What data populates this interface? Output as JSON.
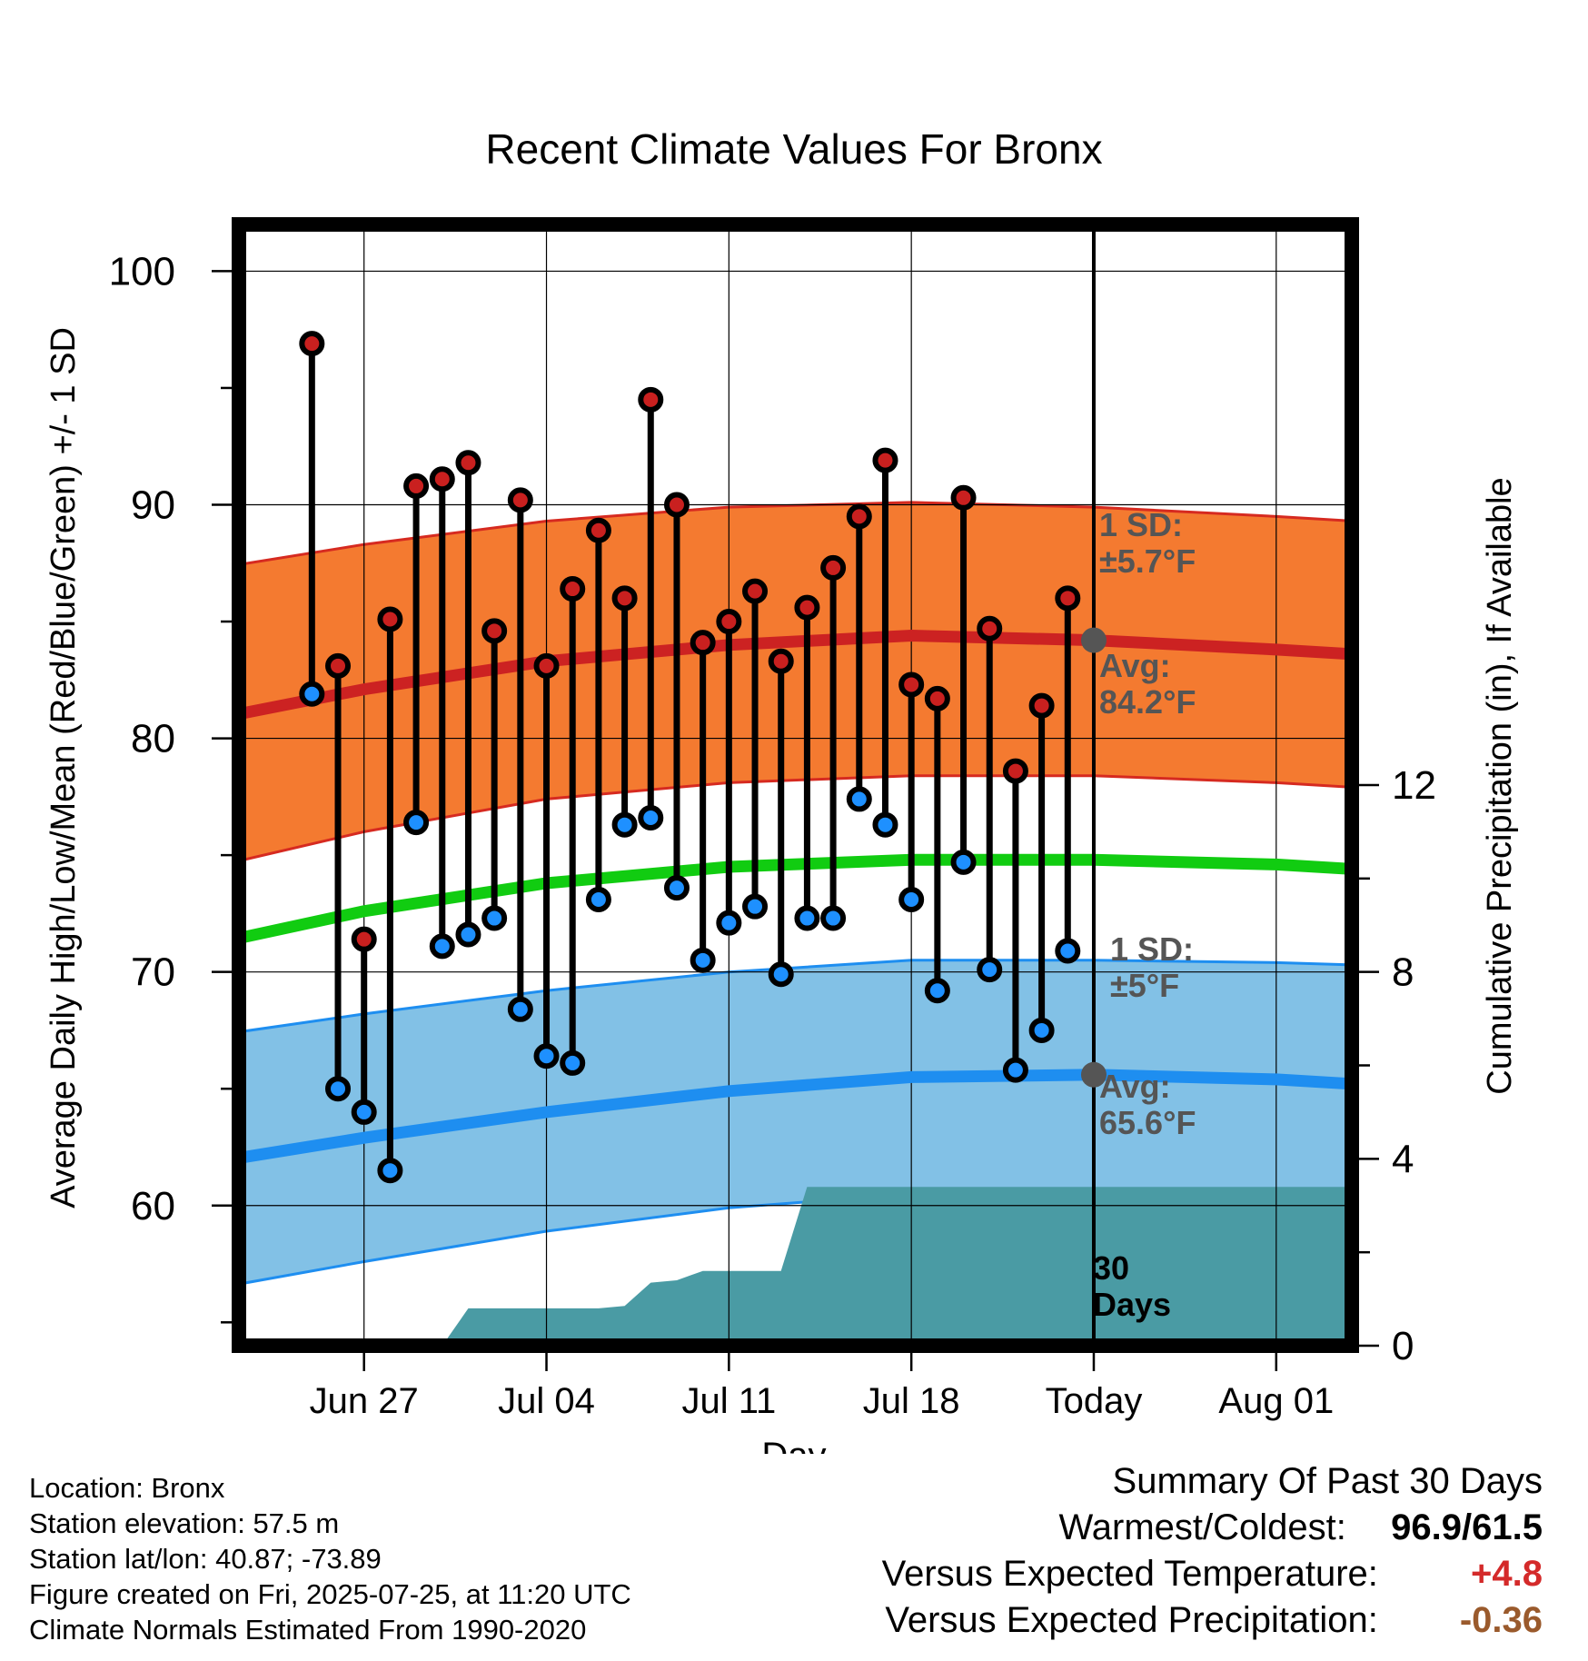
{
  "chart_data": {
    "type": "line",
    "title": "Recent Climate Values For Bronx",
    "xlabel": "Day",
    "ylabel": "Average Daily High/Low/Mean (Red/Blue/Green) +/- 1 SD",
    "y2label": "Cumulative Precipitation (in), If Available",
    "ylim": [
      54,
      102
    ],
    "y2lim": [
      0,
      24
    ],
    "x_tick_labels": [
      "Jun 27",
      "Jul 04",
      "Jul 11",
      "Jul 18",
      "Today",
      "Aug 01"
    ],
    "x_tick_days": [
      -28,
      -21,
      -14,
      -7,
      0,
      7
    ],
    "y_ticks": [
      60,
      70,
      80,
      90,
      100
    ],
    "y2_ticks": [
      0,
      4,
      8,
      12
    ],
    "grid": true,
    "days": [
      -30,
      -29,
      -28,
      -27,
      -26,
      -25,
      -24,
      -23,
      -22,
      -21,
      -20,
      -19,
      -18,
      -17,
      -16,
      -15,
      -14,
      -13,
      -12,
      -11,
      -10,
      -9,
      -8,
      -7,
      -6,
      -5,
      -4,
      -3,
      -2,
      -1
    ],
    "series": [
      {
        "name": "High",
        "color": "#c9201f",
        "values": [
          96.9,
          83.1,
          71.4,
          85.1,
          90.8,
          91.1,
          91.8,
          84.6,
          90.2,
          83.1,
          86.4,
          88.9,
          86.0,
          94.5,
          90.0,
          84.1,
          85.0,
          86.3,
          83.3,
          85.6,
          87.3,
          89.5,
          91.9,
          82.3,
          81.7,
          90.3,
          84.7,
          78.6,
          81.4,
          86.0
        ]
      },
      {
        "name": "Low",
        "color": "#1e90ff",
        "values": [
          81.9,
          65.0,
          64.0,
          61.5,
          76.4,
          71.1,
          71.6,
          72.3,
          68.4,
          66.4,
          66.1,
          73.1,
          76.3,
          76.6,
          73.6,
          70.5,
          72.1,
          72.8,
          69.9,
          72.3,
          72.3,
          77.4,
          76.3,
          73.1,
          69.2,
          74.7,
          70.1,
          65.8,
          67.5,
          70.9
        ]
      }
    ],
    "normals": {
      "days": [
        -33,
        -28,
        -21,
        -14,
        -7,
        0,
        7,
        10
      ],
      "high_avg": [
        81.0,
        82.1,
        83.3,
        84.0,
        84.4,
        84.2,
        83.8,
        83.6
      ],
      "high_upper": [
        87.4,
        88.3,
        89.3,
        89.9,
        90.1,
        89.9,
        89.5,
        89.3
      ],
      "high_lower": [
        74.7,
        76.0,
        77.4,
        78.1,
        78.4,
        78.4,
        78.1,
        77.9
      ],
      "mean_avg": [
        71.4,
        72.6,
        73.8,
        74.5,
        74.8,
        74.8,
        74.6,
        74.4
      ],
      "low_avg": [
        62.0,
        62.9,
        64.0,
        64.9,
        65.5,
        65.6,
        65.4,
        65.2
      ],
      "low_upper": [
        67.4,
        68.2,
        69.2,
        70.0,
        70.5,
        70.5,
        70.4,
        70.3
      ],
      "low_lower": [
        56.6,
        57.6,
        58.9,
        59.9,
        60.5,
        60.6,
        60.4,
        60.2
      ]
    },
    "precip": {
      "color": "#4a9ba4",
      "days": [
        -25,
        -24,
        -23,
        -22,
        -21,
        -20,
        -19,
        -18,
        -17,
        -16,
        -15,
        -14,
        -13,
        -12,
        -11,
        -10,
        -9,
        -8,
        -7,
        -6,
        -5,
        -4,
        -3,
        -2,
        -1,
        0,
        7,
        10
      ],
      "values": [
        0,
        0.8,
        0.8,
        0.8,
        0.8,
        0.8,
        0.8,
        0.85,
        1.35,
        1.4,
        1.6,
        1.6,
        1.6,
        1.6,
        3.4,
        3.4,
        3.4,
        3.4,
        3.4,
        3.4,
        3.4,
        3.4,
        3.4,
        3.4,
        3.4,
        3.4,
        3.4,
        3.4
      ]
    },
    "annotations": {
      "high_sd": [
        "1 SD:",
        "±5.7°F"
      ],
      "high_avg": [
        "Avg:",
        "84.2°F"
      ],
      "low_sd": [
        "1 SD:",
        "±5°F"
      ],
      "low_avg": [
        "Avg:",
        "65.6°F"
      ],
      "window": [
        "30",
        "Days"
      ],
      "today_high": 84.2,
      "today_low": 65.6
    }
  },
  "footer": {
    "location": "Location: Bronx",
    "elevation": "Station elevation: 57.5 m",
    "latlon": "Station lat/lon: 40.87; -73.89",
    "created": "Figure created on Fri, 2025-07-25, at 11:20 UTC",
    "normals": "Climate Normals Estimated From 1990-2020"
  },
  "summary": {
    "title": "Summary Of Past 30 Days",
    "warmest_label": "Warmest/Coldest:",
    "warmest_value": "96.9/61.5",
    "temp_label": "Versus Expected Temperature:",
    "temp_value": "+4.8",
    "temp_color": "#d42a2a",
    "precip_label": "Versus Expected Precipitation:",
    "precip_value": "-0.36",
    "precip_color": "#9a5a2c"
  }
}
